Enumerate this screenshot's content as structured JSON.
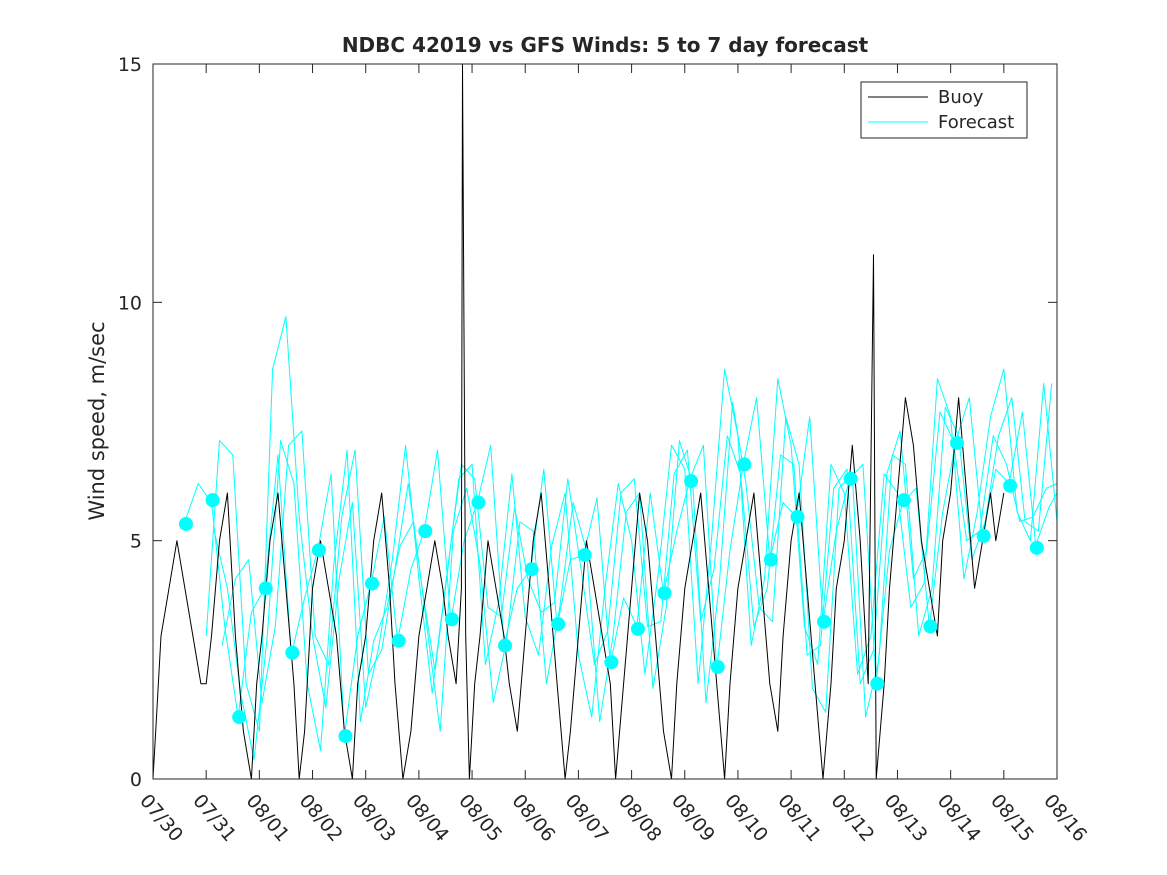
{
  "chart_data": {
    "type": "line",
    "title": "NDBC 42019 vs GFS Winds: 5 to 7 day forecast",
    "xlabel": "",
    "ylabel": "Wind speed, m/sec",
    "xlim": [
      0,
      17
    ],
    "ylim": [
      0,
      15
    ],
    "x_tick_labels": [
      "07/30",
      "07/31",
      "08/01",
      "08/02",
      "08/03",
      "08/04",
      "08/05",
      "08/06",
      "08/07",
      "08/08",
      "08/09",
      "08/10",
      "08/11",
      "08/12",
      "08/13",
      "08/14",
      "08/15",
      "08/16"
    ],
    "y_ticks": [
      0,
      5,
      10,
      15
    ],
    "legend": {
      "position": "top-right",
      "entries": [
        {
          "label": "Buoy",
          "color": "#000000"
        },
        {
          "label": "Forecast",
          "color": "#00ffff"
        }
      ]
    },
    "forecast_points": {
      "color": "#00ffff",
      "x": [
        0.62,
        1.12,
        1.62,
        2.12,
        2.62,
        3.12,
        3.62,
        4.12,
        4.62,
        5.12,
        5.62,
        6.12,
        6.62,
        7.12,
        7.62,
        8.12,
        8.62,
        9.12,
        9.62,
        10.12,
        10.62,
        11.12,
        11.62,
        12.12,
        12.62,
        13.12,
        13.62,
        14.12,
        14.62,
        15.12,
        15.62,
        16.12,
        16.62
      ],
      "y": [
        5.35,
        5.85,
        1.3,
        4.0,
        2.65,
        4.8,
        0.9,
        4.1,
        2.9,
        5.2,
        3.35,
        5.8,
        2.8,
        4.4,
        3.25,
        4.7,
        2.45,
        3.15,
        3.9,
        6.25,
        2.35,
        6.6,
        4.6,
        5.5,
        3.3,
        6.3,
        2.0,
        5.85,
        3.2,
        7.05,
        5.1,
        6.15,
        4.85
      ]
    },
    "series": [
      {
        "name": "Buoy",
        "color": "#000000",
        "x": [
          0.0,
          0.05,
          0.15,
          0.3,
          0.45,
          0.6,
          0.75,
          0.9,
          1.0,
          1.1,
          1.25,
          1.4,
          1.55,
          1.7,
          1.85,
          1.95,
          2.05,
          2.2,
          2.35,
          2.5,
          2.65,
          2.75,
          2.85,
          2.95,
          3.0,
          3.15,
          3.3,
          3.45,
          3.6,
          3.75,
          3.85,
          4.0,
          4.15,
          4.3,
          4.45,
          4.55,
          4.7,
          4.85,
          5.0,
          5.15,
          5.3,
          5.45,
          5.55,
          5.7,
          5.8,
          5.82,
          5.85,
          5.88,
          5.95,
          6.05,
          6.15,
          6.3,
          6.45,
          6.6,
          6.7,
          6.85,
          7.0,
          7.15,
          7.3,
          7.45,
          7.6,
          7.75,
          7.85,
          8.0,
          8.15,
          8.3,
          8.45,
          8.6,
          8.7,
          8.85,
          9.0,
          9.15,
          9.3,
          9.45,
          9.6,
          9.75,
          9.85,
          10.0,
          10.15,
          10.3,
          10.45,
          10.6,
          10.75,
          10.85,
          11.0,
          11.15,
          11.3,
          11.45,
          11.6,
          11.75,
          11.85,
          12.0,
          12.15,
          12.3,
          12.45,
          12.6,
          12.75,
          12.85,
          13.0,
          13.15,
          13.3,
          13.45,
          13.55,
          13.6,
          13.75,
          13.85,
          14.0,
          14.15,
          14.3,
          14.45,
          14.6,
          14.75,
          14.85,
          15.0,
          15.15,
          15.3,
          15.45,
          15.6,
          15.75,
          15.85,
          16.0
        ],
        "y": [
          0.0,
          1.0,
          3.0,
          4.0,
          5.0,
          4.0,
          3.0,
          2.0,
          2.0,
          3.0,
          5.0,
          6.0,
          3.0,
          1.0,
          0.0,
          2.0,
          3.0,
          5.0,
          6.0,
          4.0,
          2.0,
          0.0,
          1.0,
          3.0,
          4.0,
          5.0,
          4.0,
          3.0,
          1.0,
          0.0,
          2.0,
          3.0,
          5.0,
          6.0,
          4.0,
          2.0,
          0.0,
          1.0,
          3.0,
          4.0,
          5.0,
          4.0,
          3.0,
          2.0,
          4.0,
          15.0,
          9.0,
          3.0,
          0.0,
          2.0,
          3.0,
          5.0,
          4.0,
          3.0,
          2.0,
          1.0,
          3.0,
          5.0,
          6.0,
          4.0,
          2.0,
          0.0,
          1.0,
          3.0,
          5.0,
          4.0,
          3.0,
          2.0,
          0.0,
          2.0,
          4.0,
          6.0,
          5.0,
          3.0,
          1.0,
          0.0,
          2.0,
          4.0,
          5.0,
          6.0,
          4.0,
          2.0,
          0.0,
          2.0,
          4.0,
          5.0,
          6.0,
          4.0,
          2.0,
          1.0,
          3.0,
          5.0,
          6.0,
          4.0,
          2.0,
          0.0,
          2.0,
          4.0,
          5.0,
          7.0,
          5.0,
          2.0,
          11.0,
          0.0,
          2.0,
          4.0,
          6.0,
          8.0,
          7.0,
          5.0,
          4.0,
          3.0,
          5.0,
          6.0,
          8.0,
          6.0,
          4.0,
          5.0,
          6.0,
          5.0,
          6.0
        ]
      },
      {
        "name": "Forecast run 1",
        "color": "#00ffff",
        "x": [
          0.6,
          0.85,
          1.1,
          1.35,
          1.6,
          1.85,
          2.1,
          2.35,
          2.6,
          2.85,
          3.1,
          3.35,
          3.6,
          3.85,
          4.1,
          4.35,
          4.6,
          4.85,
          5.1,
          5.35,
          5.6,
          5.85,
          6.1,
          6.35,
          6.6,
          6.85,
          7.1,
          7.35,
          7.6,
          7.85,
          8.1,
          8.35,
          8.6,
          8.85,
          9.1,
          9.35,
          9.6,
          9.85,
          10.1,
          10.35,
          10.6,
          10.85,
          11.1,
          11.35,
          11.6,
          11.85,
          12.1,
          12.35,
          12.6,
          12.85,
          13.1,
          13.35,
          13.6,
          13.85,
          14.1,
          14.35,
          14.6,
          14.85,
          15.1,
          15.35,
          15.6,
          15.85,
          16.1,
          16.35,
          16.6,
          16.85,
          17.0
        ],
        "y": [
          5.4,
          6.2,
          5.8,
          3.2,
          1.3,
          3.5,
          4.0,
          6.8,
          2.6,
          3.8,
          4.8,
          6.4,
          0.9,
          3.0,
          4.1,
          5.5,
          2.9,
          4.4,
          5.2,
          6.9,
          3.3,
          5.0,
          5.8,
          7.0,
          2.8,
          4.0,
          4.4,
          6.5,
          3.2,
          4.6,
          4.7,
          5.9,
          2.4,
          3.8,
          3.2,
          6.0,
          3.9,
          5.2,
          6.3,
          7.0,
          2.3,
          4.8,
          6.6,
          8.0,
          4.6,
          5.8,
          5.5,
          7.6,
          3.3,
          5.2,
          6.3,
          6.6,
          2.0,
          4.8,
          5.8,
          6.1,
          3.2,
          5.6,
          7.1,
          8.0,
          5.1,
          6.5,
          6.2,
          7.7,
          4.9,
          5.7,
          6.0
        ]
      },
      {
        "name": "Forecast run 2",
        "color": "#00ffff",
        "x": [
          1.0,
          1.25,
          1.5,
          1.75,
          2.0,
          2.25,
          2.5,
          2.75,
          3.0,
          3.25,
          3.5,
          3.75,
          4.0,
          4.25,
          4.5,
          4.75,
          5.0,
          5.25,
          5.5,
          5.75,
          6.0,
          6.25,
          6.5,
          6.75,
          7.0,
          7.25,
          7.5,
          7.75,
          8.0,
          8.25,
          8.5,
          8.75,
          9.0,
          9.25,
          9.5,
          9.75,
          10.0,
          10.25,
          10.5,
          10.75,
          11.0,
          11.25,
          11.5,
          11.75,
          12.0,
          12.25,
          12.5,
          12.75,
          13.0,
          13.25,
          13.5,
          13.75,
          14.0,
          14.25,
          14.5,
          14.75,
          15.0,
          15.25,
          15.5,
          15.75,
          16.0,
          16.25,
          16.5,
          16.75,
          17.0
        ],
        "y": [
          3.0,
          7.1,
          6.8,
          2.0,
          1.0,
          8.6,
          9.7,
          5.5,
          3.0,
          1.5,
          4.2,
          5.8,
          1.5,
          2.8,
          4.6,
          7.0,
          4.2,
          1.8,
          4.0,
          6.3,
          6.6,
          2.4,
          3.7,
          6.4,
          3.4,
          2.6,
          4.9,
          6.0,
          2.6,
          1.3,
          4.0,
          6.2,
          5.0,
          2.2,
          4.3,
          7.0,
          6.5,
          2.0,
          5.0,
          8.6,
          7.2,
          2.8,
          4.2,
          8.4,
          7.0,
          3.2,
          2.4,
          6.6,
          6.0,
          2.2,
          3.0,
          6.4,
          6.0,
          3.6,
          4.1,
          8.4,
          7.6,
          4.2,
          5.6,
          7.6,
          8.6,
          5.6,
          5.0,
          8.3,
          5.4
        ]
      },
      {
        "name": "Forecast run 3",
        "color": "#00ffff",
        "x": [
          1.15,
          1.4,
          1.65,
          1.9,
          2.15,
          2.4,
          2.65,
          2.9,
          3.15,
          3.4,
          3.65,
          3.9,
          4.15,
          4.4,
          4.65,
          4.9,
          5.15,
          5.4,
          5.65,
          5.9,
          6.15,
          6.4,
          6.65,
          6.9,
          7.15,
          7.4,
          7.65,
          7.9,
          8.15,
          8.4,
          8.65,
          8.9,
          9.15,
          9.4,
          9.65,
          9.9,
          10.15,
          10.4,
          10.65,
          10.9,
          11.15,
          11.4,
          11.65,
          11.9,
          12.15,
          12.4,
          12.65,
          12.9,
          13.15,
          13.4,
          13.65,
          13.9,
          14.15,
          14.4,
          14.65,
          14.9,
          15.15,
          15.4,
          15.65,
          15.9,
          16.15,
          16.4,
          16.65,
          16.9
        ],
        "y": [
          5.2,
          4.0,
          1.8,
          0.4,
          3.0,
          7.1,
          6.2,
          2.0,
          0.6,
          4.5,
          6.9,
          1.2,
          2.9,
          3.6,
          4.9,
          5.4,
          3.2,
          1.0,
          5.2,
          6.1,
          4.5,
          1.6,
          2.9,
          5.4,
          5.2,
          2.0,
          3.6,
          5.8,
          4.8,
          1.2,
          3.0,
          5.6,
          6.0,
          1.9,
          3.6,
          7.1,
          6.2,
          1.6,
          4.1,
          7.9,
          6.2,
          3.6,
          3.3,
          7.6,
          6.6,
          1.9,
          1.4,
          6.1,
          6.4,
          1.3,
          2.5,
          6.8,
          6.6,
          3.0,
          4.0,
          7.8,
          7.2,
          4.6,
          5.4,
          7.2,
          8.0,
          5.4,
          5.2,
          8.3
        ]
      },
      {
        "name": "Forecast run 4",
        "color": "#00ffff",
        "x": [
          1.3,
          1.55,
          1.8,
          2.05,
          2.3,
          2.55,
          2.8,
          3.05,
          3.3,
          3.55,
          3.8,
          4.05,
          4.3,
          4.55,
          4.8,
          5.05,
          5.3,
          5.55,
          5.8,
          6.05,
          6.3,
          6.55,
          6.8,
          7.05,
          7.3,
          7.55,
          7.8,
          8.05,
          8.3,
          8.55,
          8.8,
          9.05,
          9.3,
          9.55,
          9.8,
          10.05,
          10.3,
          10.55,
          10.8,
          11.05,
          11.3,
          11.55,
          11.8,
          12.05,
          12.3,
          12.55,
          12.8,
          13.05,
          13.3,
          13.55,
          13.8,
          14.05,
          14.3,
          14.55,
          14.8,
          15.05,
          15.3,
          15.55,
          15.8,
          16.05,
          16.3,
          16.55,
          16.8,
          17.0
        ],
        "y": [
          2.8,
          4.2,
          4.6,
          1.6,
          3.2,
          7.0,
          7.3,
          3.0,
          2.4,
          5.5,
          6.9,
          2.2,
          2.7,
          4.4,
          6.2,
          4.1,
          2.3,
          4.5,
          6.6,
          6.3,
          3.6,
          3.4,
          5.7,
          4.2,
          3.5,
          3.7,
          6.3,
          4.4,
          2.4,
          3.1,
          6.0,
          6.3,
          3.2,
          3.3,
          6.4,
          6.9,
          3.3,
          4.4,
          7.2,
          6.4,
          3.2,
          4.0,
          6.8,
          6.6,
          2.6,
          2.8,
          6.1,
          6.5,
          2.0,
          2.7,
          6.4,
          7.3,
          4.2,
          4.8,
          7.7,
          7.1,
          5.0,
          5.2,
          7.2,
          6.6,
          5.4,
          5.5,
          6.1,
          6.2
        ]
      }
    ]
  }
}
